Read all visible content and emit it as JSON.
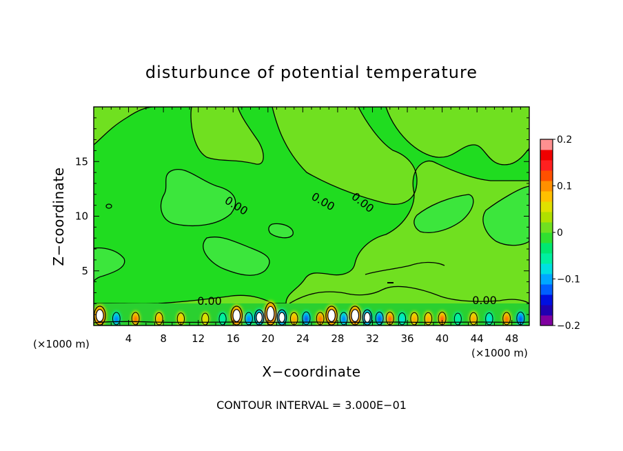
{
  "chart_data": {
    "type": "heatmap",
    "title": "disturbunce of potential temperature",
    "xlabel": "X−coordinate",
    "ylabel": "Z−coordinate",
    "x_unit_left": "(×1000 m)",
    "x_unit_right": "(×1000 m)",
    "footer": "CONTOUR INTERVAL = 3.000E−01",
    "xlim": [
      0,
      50
    ],
    "ylim": [
      0,
      20
    ],
    "x_ticks": [
      4,
      8,
      12,
      16,
      20,
      24,
      28,
      32,
      36,
      40,
      44,
      48
    ],
    "y_ticks": [
      5,
      10,
      15
    ],
    "contour_labels": [
      "0.00",
      "0.00",
      "0.00",
      "0.00",
      "0.00"
    ],
    "colorbar": {
      "range": [
        -0.2,
        0.2
      ],
      "tick_values": [
        0.2,
        0.1,
        0,
        -0.1,
        -0.2
      ],
      "tick_labels": [
        "0.2",
        "0.1",
        "0",
        "−0.1",
        "−0.2"
      ],
      "colors": [
        "#8000a0",
        "#2000b0",
        "#0010e0",
        "#0060ff",
        "#00a8ff",
        "#00e0e0",
        "#00f0a0",
        "#00e870",
        "#30e030",
        "#70e020",
        "#b0e000",
        "#e0e000",
        "#ffc000",
        "#ff9000",
        "#ff5000",
        "#ff2020",
        "#f00000",
        "#ff9090"
      ]
    },
    "background_value": 0.01,
    "bottom_anomalies": [
      {
        "x": 0.7,
        "value": 0.6
      },
      {
        "x": 2.6,
        "value": -0.12
      },
      {
        "x": 4.8,
        "value": 0.12
      },
      {
        "x": 7.5,
        "value": 0.1
      },
      {
        "x": 10.0,
        "value": 0.07
      },
      {
        "x": 12.8,
        "value": 0.05
      },
      {
        "x": 14.8,
        "value": -0.06
      },
      {
        "x": 16.4,
        "value": 0.6
      },
      {
        "x": 17.8,
        "value": -0.12
      },
      {
        "x": 19.0,
        "value": -0.3
      },
      {
        "x": 20.3,
        "value": 0.9
      },
      {
        "x": 21.6,
        "value": -0.3
      },
      {
        "x": 23.0,
        "value": 0.1
      },
      {
        "x": 24.4,
        "value": -0.16
      },
      {
        "x": 26.0,
        "value": 0.12
      },
      {
        "x": 27.3,
        "value": 0.6
      },
      {
        "x": 28.7,
        "value": -0.12
      },
      {
        "x": 30.0,
        "value": 0.6
      },
      {
        "x": 31.4,
        "value": -0.3
      },
      {
        "x": 32.8,
        "value": -0.15
      },
      {
        "x": 34.0,
        "value": 0.14
      },
      {
        "x": 35.4,
        "value": -0.08
      },
      {
        "x": 36.8,
        "value": 0.1
      },
      {
        "x": 38.4,
        "value": 0.1
      },
      {
        "x": 40.0,
        "value": 0.14
      },
      {
        "x": 41.8,
        "value": -0.05
      },
      {
        "x": 43.6,
        "value": 0.1
      },
      {
        "x": 45.4,
        "value": -0.08
      },
      {
        "x": 47.4,
        "value": 0.12
      },
      {
        "x": 49.0,
        "value": -0.15
      }
    ]
  }
}
